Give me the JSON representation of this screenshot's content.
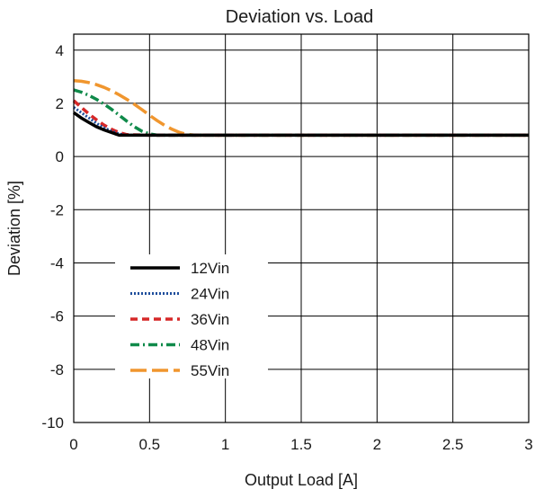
{
  "chart_data": {
    "type": "line",
    "title": "Deviation vs. Load",
    "xlabel": "Output Load [A]",
    "ylabel": "Deviation [%]",
    "xlim": [
      0,
      3
    ],
    "ylim": [
      -10,
      4.6
    ],
    "x_ticks": [
      0,
      0.5,
      1,
      1.5,
      2,
      2.5,
      3
    ],
    "y_ticks": [
      -10,
      -8,
      -6,
      -4,
      -2,
      0,
      2,
      4
    ],
    "x_tick_labels": [
      "0",
      "0.5",
      "1",
      "1.5",
      "2",
      "2.5",
      "3"
    ],
    "y_tick_labels": [
      "-10",
      "-8",
      "-6",
      "-4",
      "-2",
      "0",
      "2",
      "4"
    ],
    "grid": true,
    "legend_position": "lower-left",
    "series": [
      {
        "name": "12Vin",
        "color": "#000000",
        "style": "solid",
        "x": [
          0,
          0.05,
          0.1,
          0.15,
          0.2,
          0.25,
          0.3,
          0.5,
          1,
          1.5,
          2,
          2.5,
          3
        ],
        "y": [
          1.65,
          1.45,
          1.28,
          1.12,
          1.0,
          0.9,
          0.8,
          0.8,
          0.8,
          0.8,
          0.8,
          0.8,
          0.8
        ]
      },
      {
        "name": "24Vin",
        "color": "#1f4e9c",
        "style": "dotted",
        "x": [
          0,
          0.05,
          0.1,
          0.15,
          0.2,
          0.25,
          0.3,
          0.35,
          0.5,
          1,
          1.5,
          2,
          2.5,
          3
        ],
        "y": [
          1.85,
          1.65,
          1.45,
          1.25,
          1.08,
          0.95,
          0.85,
          0.8,
          0.8,
          0.8,
          0.8,
          0.8,
          0.8,
          0.8
        ]
      },
      {
        "name": "36Vin",
        "color": "#d62828",
        "style": "dashed",
        "x": [
          0,
          0.05,
          0.1,
          0.15,
          0.2,
          0.25,
          0.3,
          0.35,
          0.5,
          1,
          1.5,
          2,
          2.5,
          3
        ],
        "y": [
          2.1,
          1.85,
          1.6,
          1.38,
          1.18,
          1.02,
          0.9,
          0.82,
          0.8,
          0.8,
          0.8,
          0.8,
          0.8,
          0.8
        ]
      },
      {
        "name": "48Vin",
        "color": "#0f8a4a",
        "style": "dashdot",
        "x": [
          0,
          0.05,
          0.1,
          0.15,
          0.2,
          0.25,
          0.3,
          0.35,
          0.4,
          0.45,
          0.5,
          0.55,
          1,
          1.5,
          2,
          2.5,
          3
        ],
        "y": [
          2.5,
          2.42,
          2.3,
          2.15,
          1.97,
          1.77,
          1.55,
          1.33,
          1.12,
          0.95,
          0.85,
          0.8,
          0.8,
          0.8,
          0.8,
          0.8,
          0.8
        ]
      },
      {
        "name": "55Vin",
        "color": "#f0962e",
        "style": "longdash",
        "x": [
          0,
          0.05,
          0.1,
          0.15,
          0.2,
          0.25,
          0.3,
          0.35,
          0.4,
          0.45,
          0.5,
          0.55,
          0.6,
          0.65,
          0.7,
          0.75,
          0.8,
          1,
          1.5,
          2,
          2.5,
          3
        ],
        "y": [
          2.85,
          2.83,
          2.78,
          2.7,
          2.6,
          2.47,
          2.32,
          2.15,
          1.96,
          1.76,
          1.55,
          1.35,
          1.17,
          1.02,
          0.9,
          0.83,
          0.8,
          0.8,
          0.8,
          0.8,
          0.8,
          0.8
        ]
      }
    ]
  }
}
